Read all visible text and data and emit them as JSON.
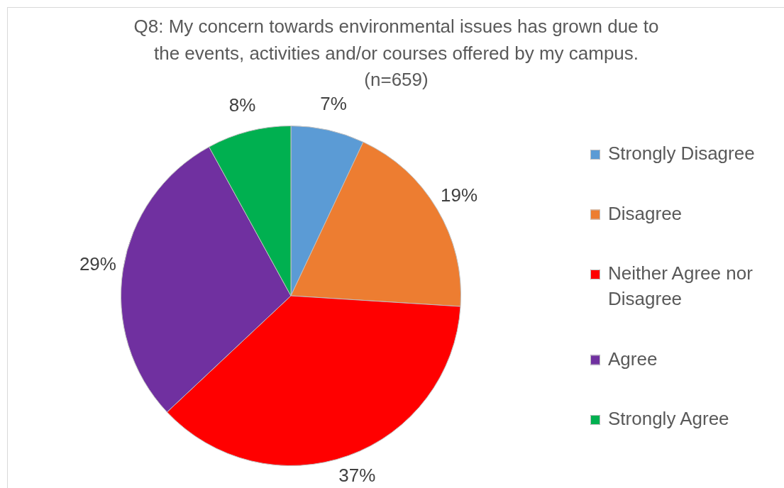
{
  "chart_data": {
    "type": "pie",
    "title": "Q8: My concern towards environmental issues has grown due to the events, activities and/or courses offered by my campus.",
    "subtitle": "(n=659)",
    "categories": [
      "Strongly Disagree",
      "Disagree",
      "Neither Agree nor Disagree",
      "Agree",
      "Strongly Agree"
    ],
    "values": [
      7,
      19,
      37,
      29,
      8
    ],
    "value_labels": [
      "7%",
      "19%",
      "37%",
      "29%",
      "8%"
    ],
    "colors": [
      "#5b9bd5",
      "#ed7d31",
      "#ff0000",
      "#7030a0",
      "#00b050"
    ],
    "legend": "right"
  }
}
